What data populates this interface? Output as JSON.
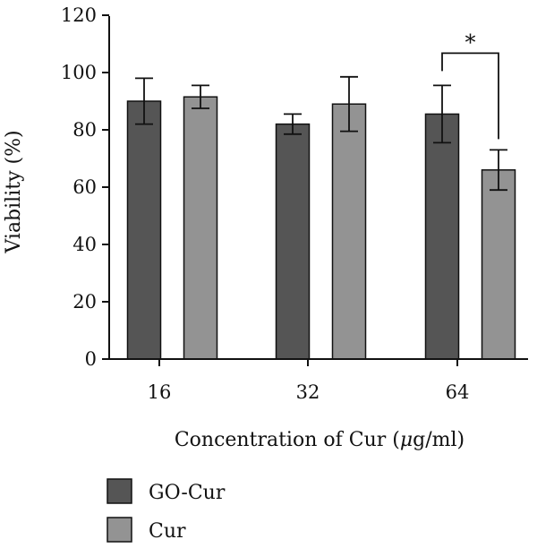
{
  "chart_data": {
    "type": "bar",
    "xlabel_prefix": "Concentration of Cur (",
    "xlabel_mu": "μ",
    "xlabel_suffix": "g/ml)",
    "ylabel": "Viability (%)",
    "categories": [
      "16",
      "32",
      "64"
    ],
    "ylim": [
      0,
      120
    ],
    "yticks": [
      "0",
      "20",
      "40",
      "60",
      "80",
      "100",
      "120"
    ],
    "grid": false,
    "legend_placement": "bottom-left",
    "series": [
      {
        "name": "GO-Cur",
        "color": "#555555",
        "values": [
          90.0,
          82.0,
          85.5
        ],
        "errors": [
          8.0,
          3.5,
          10.0
        ]
      },
      {
        "name": "Cur",
        "color": "#939393",
        "values": [
          91.5,
          89.0,
          66.0
        ],
        "errors": [
          4.0,
          9.5,
          7.0
        ]
      }
    ],
    "annotations": [
      {
        "type": "significance",
        "label": "*",
        "category": "64",
        "between": [
          "GO-Cur",
          "Cur"
        ]
      }
    ]
  }
}
